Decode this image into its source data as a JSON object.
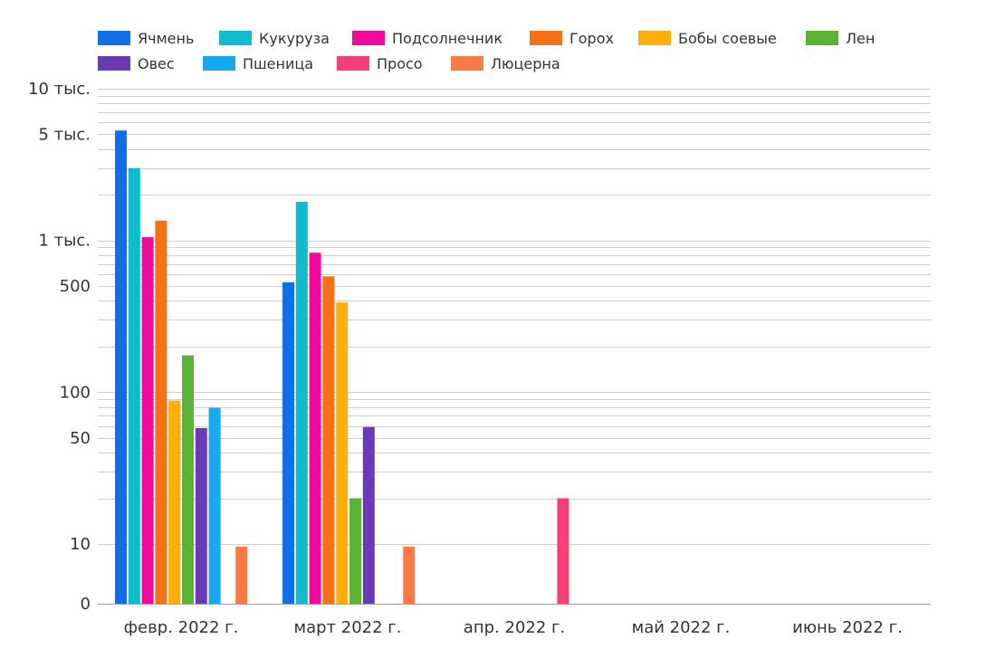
{
  "chart_data": {
    "type": "bar",
    "y_scale": "log",
    "y_tick_labels": [
      "0",
      "10",
      "50",
      "100",
      "500",
      "1 тыс.",
      "5 тыс.",
      "10 тыс."
    ],
    "y_tick_values": [
      0,
      10,
      50,
      100,
      500,
      1000,
      5000,
      10000
    ],
    "ylim": [
      0,
      10000
    ],
    "grid": true,
    "legend_position": "top",
    "categories": [
      "февр. 2022 г.",
      "март 2022 г.",
      "апр. 2022 г.",
      "май 2022 г.",
      "июнь 2022 г."
    ],
    "series": [
      {
        "name": "Ячмень",
        "color": "#0F6FE8",
        "values": [
          5300,
          530,
          null,
          null,
          null
        ]
      },
      {
        "name": "Кукуруза",
        "color": "#0EBCCB",
        "values": [
          3000,
          1800,
          null,
          null,
          null
        ]
      },
      {
        "name": "Подсолнечник",
        "color": "#F00A9C",
        "values": [
          1050,
          830,
          null,
          null,
          null
        ]
      },
      {
        "name": "Горох",
        "color": "#F47116",
        "values": [
          1350,
          580,
          null,
          null,
          null
        ]
      },
      {
        "name": "Бобы соевые",
        "color": "#FFAD0A",
        "values": [
          88,
          390,
          null,
          null,
          null
        ]
      },
      {
        "name": "Лен",
        "color": "#5BB335",
        "values": [
          175,
          20,
          null,
          null,
          null
        ]
      },
      {
        "name": "Овес",
        "color": "#6B3BB7",
        "values": [
          58,
          59,
          null,
          null,
          null
        ]
      },
      {
        "name": "Пшеница",
        "color": "#17A8F2",
        "values": [
          79,
          null,
          null,
          null,
          null
        ]
      },
      {
        "name": "Просо",
        "color": "#F63F78",
        "values": [
          null,
          null,
          20,
          null,
          null
        ]
      },
      {
        "name": "Люцерна",
        "color": "#FA7A46",
        "values": [
          8.9,
          8.9,
          null,
          null,
          null
        ]
      }
    ]
  }
}
